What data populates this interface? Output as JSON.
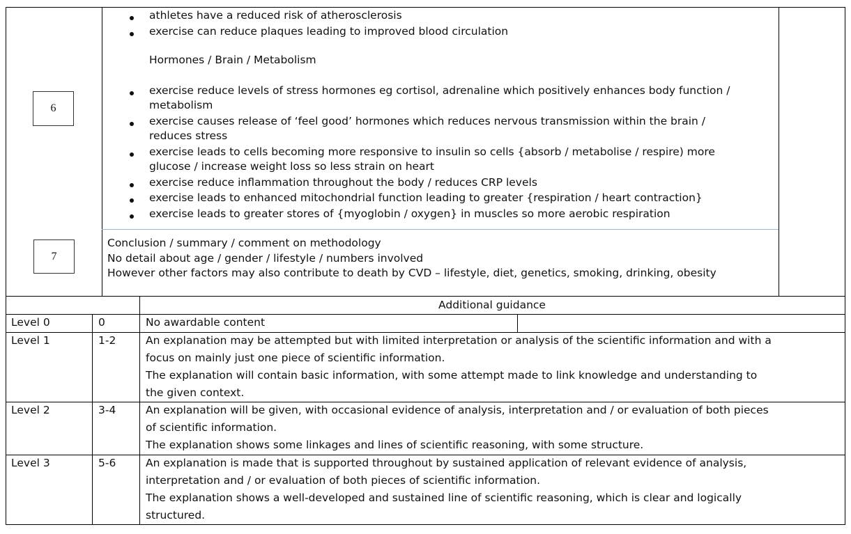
{
  "markscheme": {
    "row6": {
      "number": "6",
      "bullets_a": [
        "athletes have a reduced risk of atherosclerosis",
        "exercise can reduce plaques leading to improved blood circulation"
      ],
      "subheading": "Hormones / Brain / Metabolism",
      "bullets_b": [
        [
          "exercise reduce levels of stress hormones eg cortisol, adrenaline which positively enhances body function /",
          "metabolism"
        ],
        [
          "exercise causes release of ‘feel good’ hormones which reduces nervous transmission within the brain /",
          "reduces stress"
        ],
        [
          "exercise leads to cells becoming more responsive to insulin so cells {absorb / metabolise / respire) more",
          "glucose / increase weight loss so less strain on heart"
        ],
        [
          "exercise reduce inflammation throughout the body / reduces CRP levels"
        ],
        [
          "exercise leads to enhanced mitochondrial function leading to greater {respiration / heart contraction}"
        ],
        [
          "exercise leads to greater stores of {myoglobin / oxygen} in muscles so more aerobic respiration"
        ]
      ]
    },
    "row7": {
      "number": "7",
      "lines": [
        "Conclusion / summary / comment on methodology",
        "No detail about age / gender / lifestyle / numbers involved",
        "However other factors may also contribute to death by CVD – lifestyle, diet, genetics, smoking, drinking, obesity"
      ]
    }
  },
  "levels": {
    "header": "Additional guidance",
    "rows": [
      {
        "level": "Level 0",
        "marks": "0",
        "lines": [
          "No awardable content"
        ]
      },
      {
        "level": "Level 1",
        "marks": "1-2",
        "lines": [
          "An explanation may be attempted but with limited interpretation or analysis of the scientific information and with a",
          "focus on mainly just one piece of scientific information.",
          "The explanation will contain basic information, with some attempt made to link knowledge and understanding to",
          "the given context."
        ]
      },
      {
        "level": "Level 2",
        "marks": "3-4",
        "lines": [
          "An explanation will be given, with occasional evidence of analysis, interpretation and / or evaluation of both pieces",
          "of scientific information.",
          "The explanation shows some linkages and lines of scientific reasoning, with some structure."
        ]
      },
      {
        "level": "Level 3",
        "marks": "5-6",
        "lines": [
          "An explanation is made that is supported throughout by sustained application of relevant evidence of analysis,",
          "interpretation and / or evaluation of both pieces of scientific information.",
          "The explanation shows a well-developed and sustained line of scientific reasoning, which is clear and logically",
          "structured."
        ]
      }
    ]
  }
}
